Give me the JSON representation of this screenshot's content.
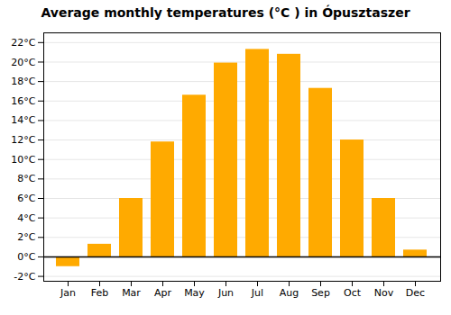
{
  "chart_data": {
    "type": "bar",
    "title": "Average monthly temperatures (°C ) in Ópusztaszer",
    "categories": [
      "Jan",
      "Feb",
      "Mar",
      "Apr",
      "May",
      "Jun",
      "Jul",
      "Aug",
      "Sep",
      "Oct",
      "Nov",
      "Dec"
    ],
    "values": [
      -1.0,
      1.3,
      6.0,
      11.8,
      16.6,
      19.9,
      21.3,
      20.8,
      17.3,
      12.0,
      6.0,
      0.7
    ],
    "color": "#FFAA00",
    "ylim": [
      -2.5,
      23
    ],
    "yticks": [
      {
        "value": -2,
        "label": "-2°C"
      },
      {
        "value": 0,
        "label": "0°C"
      },
      {
        "value": 2,
        "label": "2°C"
      },
      {
        "value": 4,
        "label": "4°C"
      },
      {
        "value": 6,
        "label": "6°C"
      },
      {
        "value": 8,
        "label": "8°C"
      },
      {
        "value": 10,
        "label": "10°C"
      },
      {
        "value": 12,
        "label": "12°C"
      },
      {
        "value": 14,
        "label": "14°C"
      },
      {
        "value": 16,
        "label": "16°C"
      },
      {
        "value": 18,
        "label": "18°C"
      },
      {
        "value": 20,
        "label": "20°C"
      },
      {
        "value": 22,
        "label": "22°C"
      }
    ],
    "grid": true
  }
}
